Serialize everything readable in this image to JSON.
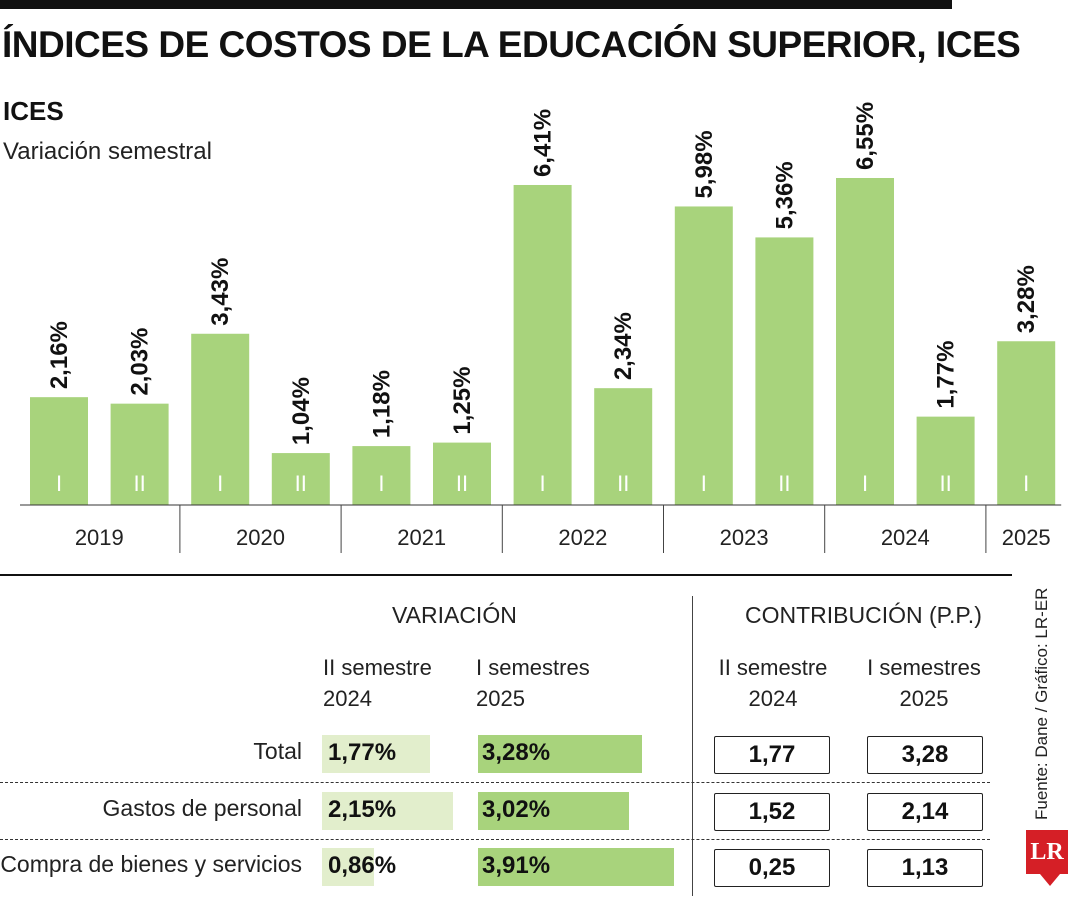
{
  "header": {
    "title": "ÍNDICES DE COSTOS DE LA EDUCACIÓN SUPERIOR, ICES",
    "subtitle": "ICES",
    "subtitle2": "Variación semestral"
  },
  "chart_data": {
    "type": "bar",
    "title": "ICES",
    "subtitle": "Variación semestral",
    "categories": [
      "2019-I",
      "2019-II",
      "2020-I",
      "2020-II",
      "2021-I",
      "2021-II",
      "2022-I",
      "2022-II",
      "2023-I",
      "2023-II",
      "2024-I",
      "2024-II",
      "2025-I"
    ],
    "semesters": [
      "I",
      "II",
      "I",
      "II",
      "I",
      "II",
      "I",
      "II",
      "I",
      "II",
      "I",
      "II",
      "I"
    ],
    "values": [
      2.16,
      2.03,
      3.43,
      1.04,
      1.18,
      1.25,
      6.41,
      2.34,
      5.98,
      5.36,
      6.55,
      1.77,
      3.28
    ],
    "labels": [
      "2,16%",
      "2,03%",
      "3,43%",
      "1,04%",
      "1,18%",
      "1,25%",
      "6,41%",
      "2,34%",
      "5,98%",
      "5,36%",
      "6,55%",
      "1,77%",
      "3,28%"
    ],
    "years": [
      "2019",
      "2020",
      "2021",
      "2022",
      "2023",
      "2024",
      "2025"
    ],
    "ylim": [
      0,
      6.55
    ],
    "bar_color": "#a8d37c",
    "grid": false
  },
  "table": {
    "variacion_header": "VARIACIÓN",
    "contribucion_header": "CONTRIBUCIÓN (P.P.)",
    "col_a_line1": "II semestre",
    "col_a_line2": "2024",
    "col_b_line1": "I semestres",
    "col_b_line2": "2025",
    "rows": [
      {
        "label": "Total",
        "var_2024": 1.77,
        "var_2024_text": "1,77%",
        "var_2025": 3.28,
        "var_2025_text": "3,28%",
        "contrib_2024": "1,77",
        "contrib_2025": "3,28"
      },
      {
        "label": "Gastos de personal",
        "var_2024": 2.15,
        "var_2024_text": "2,15%",
        "var_2025": 3.02,
        "var_2025_text": "3,02%",
        "contrib_2024": "1,52",
        "contrib_2025": "2,14"
      },
      {
        "label": "Compra de bienes y servicios",
        "var_2024": 0.86,
        "var_2024_text": "0,86%",
        "var_2025": 3.91,
        "var_2025_text": "3,91%",
        "contrib_2024": "0,25",
        "contrib_2025": "1,13"
      }
    ],
    "light_color": "#e2eecc",
    "green_color": "#a8d37c"
  },
  "source": "Fuente: Dane / Gráfico: LR-ER",
  "logo_text": "LR"
}
